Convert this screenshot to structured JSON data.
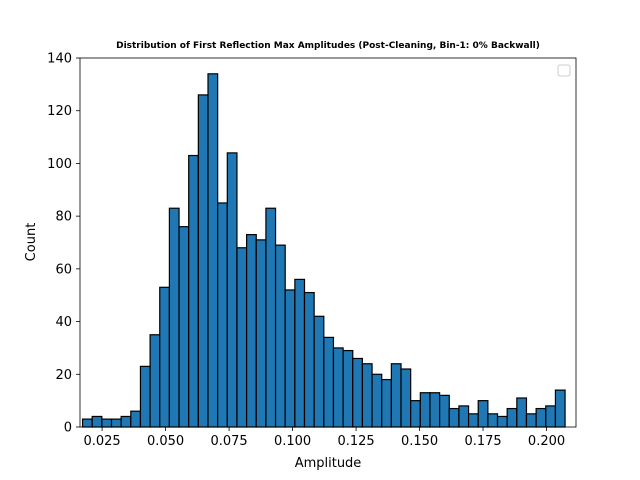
{
  "chart_data": {
    "type": "bar",
    "title": "Distribution of First Reflection Max Amplitudes (Post-Cleaning, Bin-1: 0% Backwall)",
    "xlabel": "Amplitude",
    "ylabel": "Count",
    "xlim": [
      0.0163,
      0.2116
    ],
    "ylim": [
      0,
      140
    ],
    "x_tick_labels": [
      "0.025",
      "0.050",
      "0.075",
      "0.100",
      "0.125",
      "0.150",
      "0.175",
      "0.200"
    ],
    "y_tick_labels": [
      "0",
      "20",
      "40",
      "60",
      "80",
      "100",
      "120",
      "140"
    ],
    "bin_edges_start": 0.0173,
    "bin_width": 0.0038,
    "values": [
      3,
      4,
      3,
      3,
      4,
      6,
      23,
      35,
      53,
      83,
      76,
      103,
      126,
      134,
      85,
      104,
      68,
      73,
      71,
      83,
      69,
      52,
      56,
      51,
      42,
      34,
      30,
      29,
      26,
      24,
      20,
      18,
      24,
      22,
      10,
      13,
      13,
      12,
      7,
      8,
      5,
      10,
      5,
      4,
      7,
      11,
      5,
      7,
      8,
      14
    ],
    "bar_color": "#1f77b4",
    "edge_color": "#000000",
    "grid": false,
    "legend": {
      "placement": "upper right",
      "entries": []
    }
  }
}
